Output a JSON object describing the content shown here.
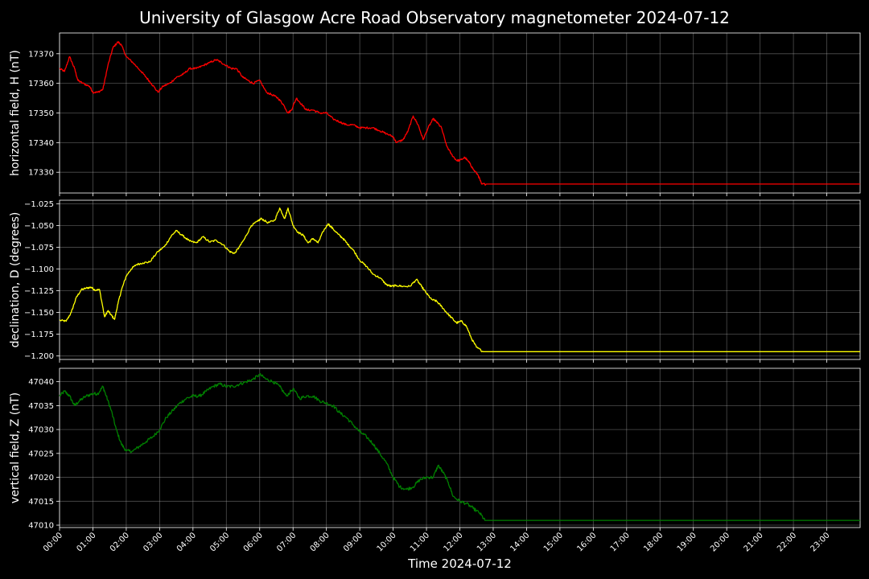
{
  "chart_data": {
    "type": "line",
    "title": "University of Glasgow Acre Road Observatory magnetometer 2024-07-12",
    "xlabel": "Time 2024-07-12",
    "x_ticks": [
      "00:00",
      "01:00",
      "02:00",
      "03:00",
      "04:00",
      "05:00",
      "06:00",
      "07:00",
      "08:00",
      "09:00",
      "10:00",
      "11:00",
      "12:00",
      "13:00",
      "14:00",
      "15:00",
      "16:00",
      "17:00",
      "18:00",
      "19:00",
      "20:00",
      "21:00",
      "22:00",
      "23:00"
    ],
    "xlim_hours": [
      0,
      24
    ],
    "grid": true,
    "panels": [
      {
        "ylabel": "horizontal field, H (nT)",
        "color": "#ff0000",
        "ylim": [
          17323,
          17377
        ],
        "y_ticks": [
          17330,
          17340,
          17350,
          17360,
          17370
        ],
        "y_tick_labels": [
          "17330",
          "17340",
          "17350",
          "17360",
          "17370"
        ],
        "series": {
          "t": [
            0,
            0.15,
            0.3,
            0.45,
            0.55,
            0.7,
            0.9,
            1.0,
            1.15,
            1.3,
            1.45,
            1.6,
            1.75,
            1.85,
            2.0,
            2.2,
            2.45,
            2.6,
            2.75,
            2.95,
            3.1,
            3.3,
            3.5,
            3.7,
            3.9,
            4.1,
            4.3,
            4.5,
            4.7,
            4.85,
            5.0,
            5.15,
            5.3,
            5.5,
            5.65,
            5.8,
            6.0,
            6.2,
            6.4,
            6.55,
            6.7,
            6.85,
            6.95,
            7.1,
            7.25,
            7.4,
            7.6,
            7.8,
            8.0,
            8.2,
            8.4,
            8.6,
            8.8,
            9.0,
            9.2,
            9.4,
            9.6,
            9.8,
            10.0,
            10.1,
            10.3,
            10.45,
            10.6,
            10.75,
            10.9,
            11.05,
            11.2,
            11.3,
            11.45,
            11.6,
            11.75,
            11.9,
            12.0,
            12.15,
            12.3,
            12.4,
            12.55,
            12.65,
            12.8,
            24
          ],
          "y": [
            17365,
            17364,
            17369,
            17365,
            17361,
            17360,
            17359,
            17357,
            17357,
            17358,
            17366,
            17372,
            17374,
            17373,
            17369,
            17367,
            17364,
            17362,
            17360,
            17357,
            17359,
            17360,
            17362,
            17363,
            17365,
            17365,
            17366,
            17367,
            17368,
            17367,
            17366,
            17365,
            17365,
            17362,
            17361,
            17360,
            17361,
            17357,
            17356,
            17355,
            17353,
            17350,
            17351,
            17355,
            17353,
            17351,
            17351,
            17350,
            17350,
            17348,
            17347,
            17346,
            17346,
            17345,
            17345,
            17345,
            17344,
            17343,
            17342,
            17340,
            17341,
            17344,
            17349,
            17346,
            17341,
            17345,
            17348,
            17347,
            17345,
            17339,
            17336,
            17334,
            17334,
            17335,
            17333,
            17331,
            17329,
            17326,
            17326,
            17326
          ]
        }
      },
      {
        "ylabel": "declination, D (degrees)",
        "color": "#ffff00",
        "ylim": [
          -1.204,
          -1.021
        ],
        "y_ticks": [
          -1.2,
          -1.175,
          -1.15,
          -1.125,
          -1.1,
          -1.075,
          -1.05,
          -1.025
        ],
        "y_tick_labels": [
          "−1.200",
          "−1.175",
          "−1.150",
          "−1.125",
          "−1.100",
          "−1.075",
          "−1.050",
          "−1.025"
        ],
        "series": {
          "t": [
            0,
            0.2,
            0.35,
            0.5,
            0.65,
            0.8,
            0.95,
            1.05,
            1.2,
            1.35,
            1.45,
            1.55,
            1.65,
            1.75,
            1.85,
            2.0,
            2.15,
            2.3,
            2.5,
            2.7,
            2.95,
            3.15,
            3.35,
            3.5,
            3.7,
            3.9,
            4.1,
            4.3,
            4.5,
            4.7,
            4.9,
            5.1,
            5.25,
            5.4,
            5.55,
            5.75,
            5.95,
            6.05,
            6.25,
            6.45,
            6.6,
            6.75,
            6.85,
            7.0,
            7.15,
            7.3,
            7.45,
            7.6,
            7.75,
            7.9,
            8.05,
            8.2,
            8.35,
            8.5,
            8.65,
            8.8,
            9.0,
            9.2,
            9.4,
            9.6,
            9.8,
            9.95,
            10.1,
            10.3,
            10.5,
            10.7,
            10.85,
            11.0,
            11.15,
            11.3,
            11.45,
            11.6,
            11.75,
            11.9,
            12.05,
            12.2,
            12.35,
            12.5,
            12.7,
            24
          ],
          "y": [
            -1.159,
            -1.16,
            -1.15,
            -1.133,
            -1.124,
            -1.122,
            -1.121,
            -1.124,
            -1.124,
            -1.155,
            -1.148,
            -1.153,
            -1.158,
            -1.14,
            -1.125,
            -1.108,
            -1.1,
            -1.095,
            -1.093,
            -1.092,
            -1.08,
            -1.074,
            -1.062,
            -1.056,
            -1.062,
            -1.068,
            -1.07,
            -1.063,
            -1.069,
            -1.067,
            -1.072,
            -1.08,
            -1.082,
            -1.074,
            -1.065,
            -1.05,
            -1.045,
            -1.042,
            -1.047,
            -1.044,
            -1.03,
            -1.042,
            -1.03,
            -1.05,
            -1.058,
            -1.061,
            -1.07,
            -1.065,
            -1.07,
            -1.057,
            -1.048,
            -1.054,
            -1.06,
            -1.065,
            -1.072,
            -1.078,
            -1.09,
            -1.097,
            -1.106,
            -1.11,
            -1.118,
            -1.12,
            -1.119,
            -1.12,
            -1.12,
            -1.112,
            -1.12,
            -1.128,
            -1.135,
            -1.137,
            -1.143,
            -1.15,
            -1.156,
            -1.162,
            -1.16,
            -1.166,
            -1.18,
            -1.19,
            -1.195,
            -1.195
          ]
        }
      },
      {
        "ylabel": "vertical field, Z (nT)",
        "color": "#008000",
        "ylim": [
          47009.5,
          47042.8
        ],
        "y_ticks": [
          47010,
          47015,
          47020,
          47025,
          47030,
          47035,
          47040
        ],
        "y_tick_labels": [
          "47010",
          "47015",
          "47020",
          "47025",
          "47030",
          "47035",
          "47040"
        ],
        "series": {
          "t": [
            0,
            0.15,
            0.3,
            0.45,
            0.6,
            0.8,
            1.0,
            1.15,
            1.3,
            1.4,
            1.55,
            1.7,
            1.85,
            2.0,
            2.2,
            2.4,
            2.6,
            2.8,
            3.0,
            3.2,
            3.4,
            3.6,
            3.8,
            4.0,
            4.2,
            4.4,
            4.6,
            4.8,
            5.0,
            5.2,
            5.4,
            5.6,
            5.8,
            6.0,
            6.2,
            6.4,
            6.6,
            6.8,
            7.0,
            7.2,
            7.4,
            7.6,
            7.8,
            8.0,
            8.2,
            8.4,
            8.6,
            8.8,
            9.0,
            9.2,
            9.4,
            9.6,
            9.8,
            10.0,
            10.2,
            10.4,
            10.6,
            10.8,
            11.0,
            11.2,
            11.35,
            11.5,
            11.65,
            11.8,
            12.0,
            12.2,
            12.4,
            12.6,
            12.75,
            24
          ],
          "y": [
            47037,
            47038,
            47037,
            47035,
            47036,
            47037,
            47037.5,
            47037.5,
            47039,
            47037,
            47034,
            47030,
            47027,
            47025.5,
            47025.5,
            47026.5,
            47027.5,
            47028.5,
            47030,
            47032.5,
            47034,
            47035.5,
            47036.5,
            47037,
            47037,
            47038,
            47039,
            47039.5,
            47039,
            47039,
            47039.5,
            47040,
            47040.5,
            47041.5,
            47040.5,
            47040,
            47039,
            47037,
            47038.5,
            47036.5,
            47037,
            47037,
            47036,
            47035.5,
            47035,
            47033.5,
            47032.5,
            47031,
            47029.5,
            47028.5,
            47027,
            47025,
            47023,
            47020,
            47018,
            47017.5,
            47018,
            47019.5,
            47020,
            47020,
            47022.5,
            47021,
            47019,
            47016,
            47015,
            47014.5,
            47013.5,
            47012.5,
            47011,
            47011
          ]
        }
      }
    ]
  }
}
